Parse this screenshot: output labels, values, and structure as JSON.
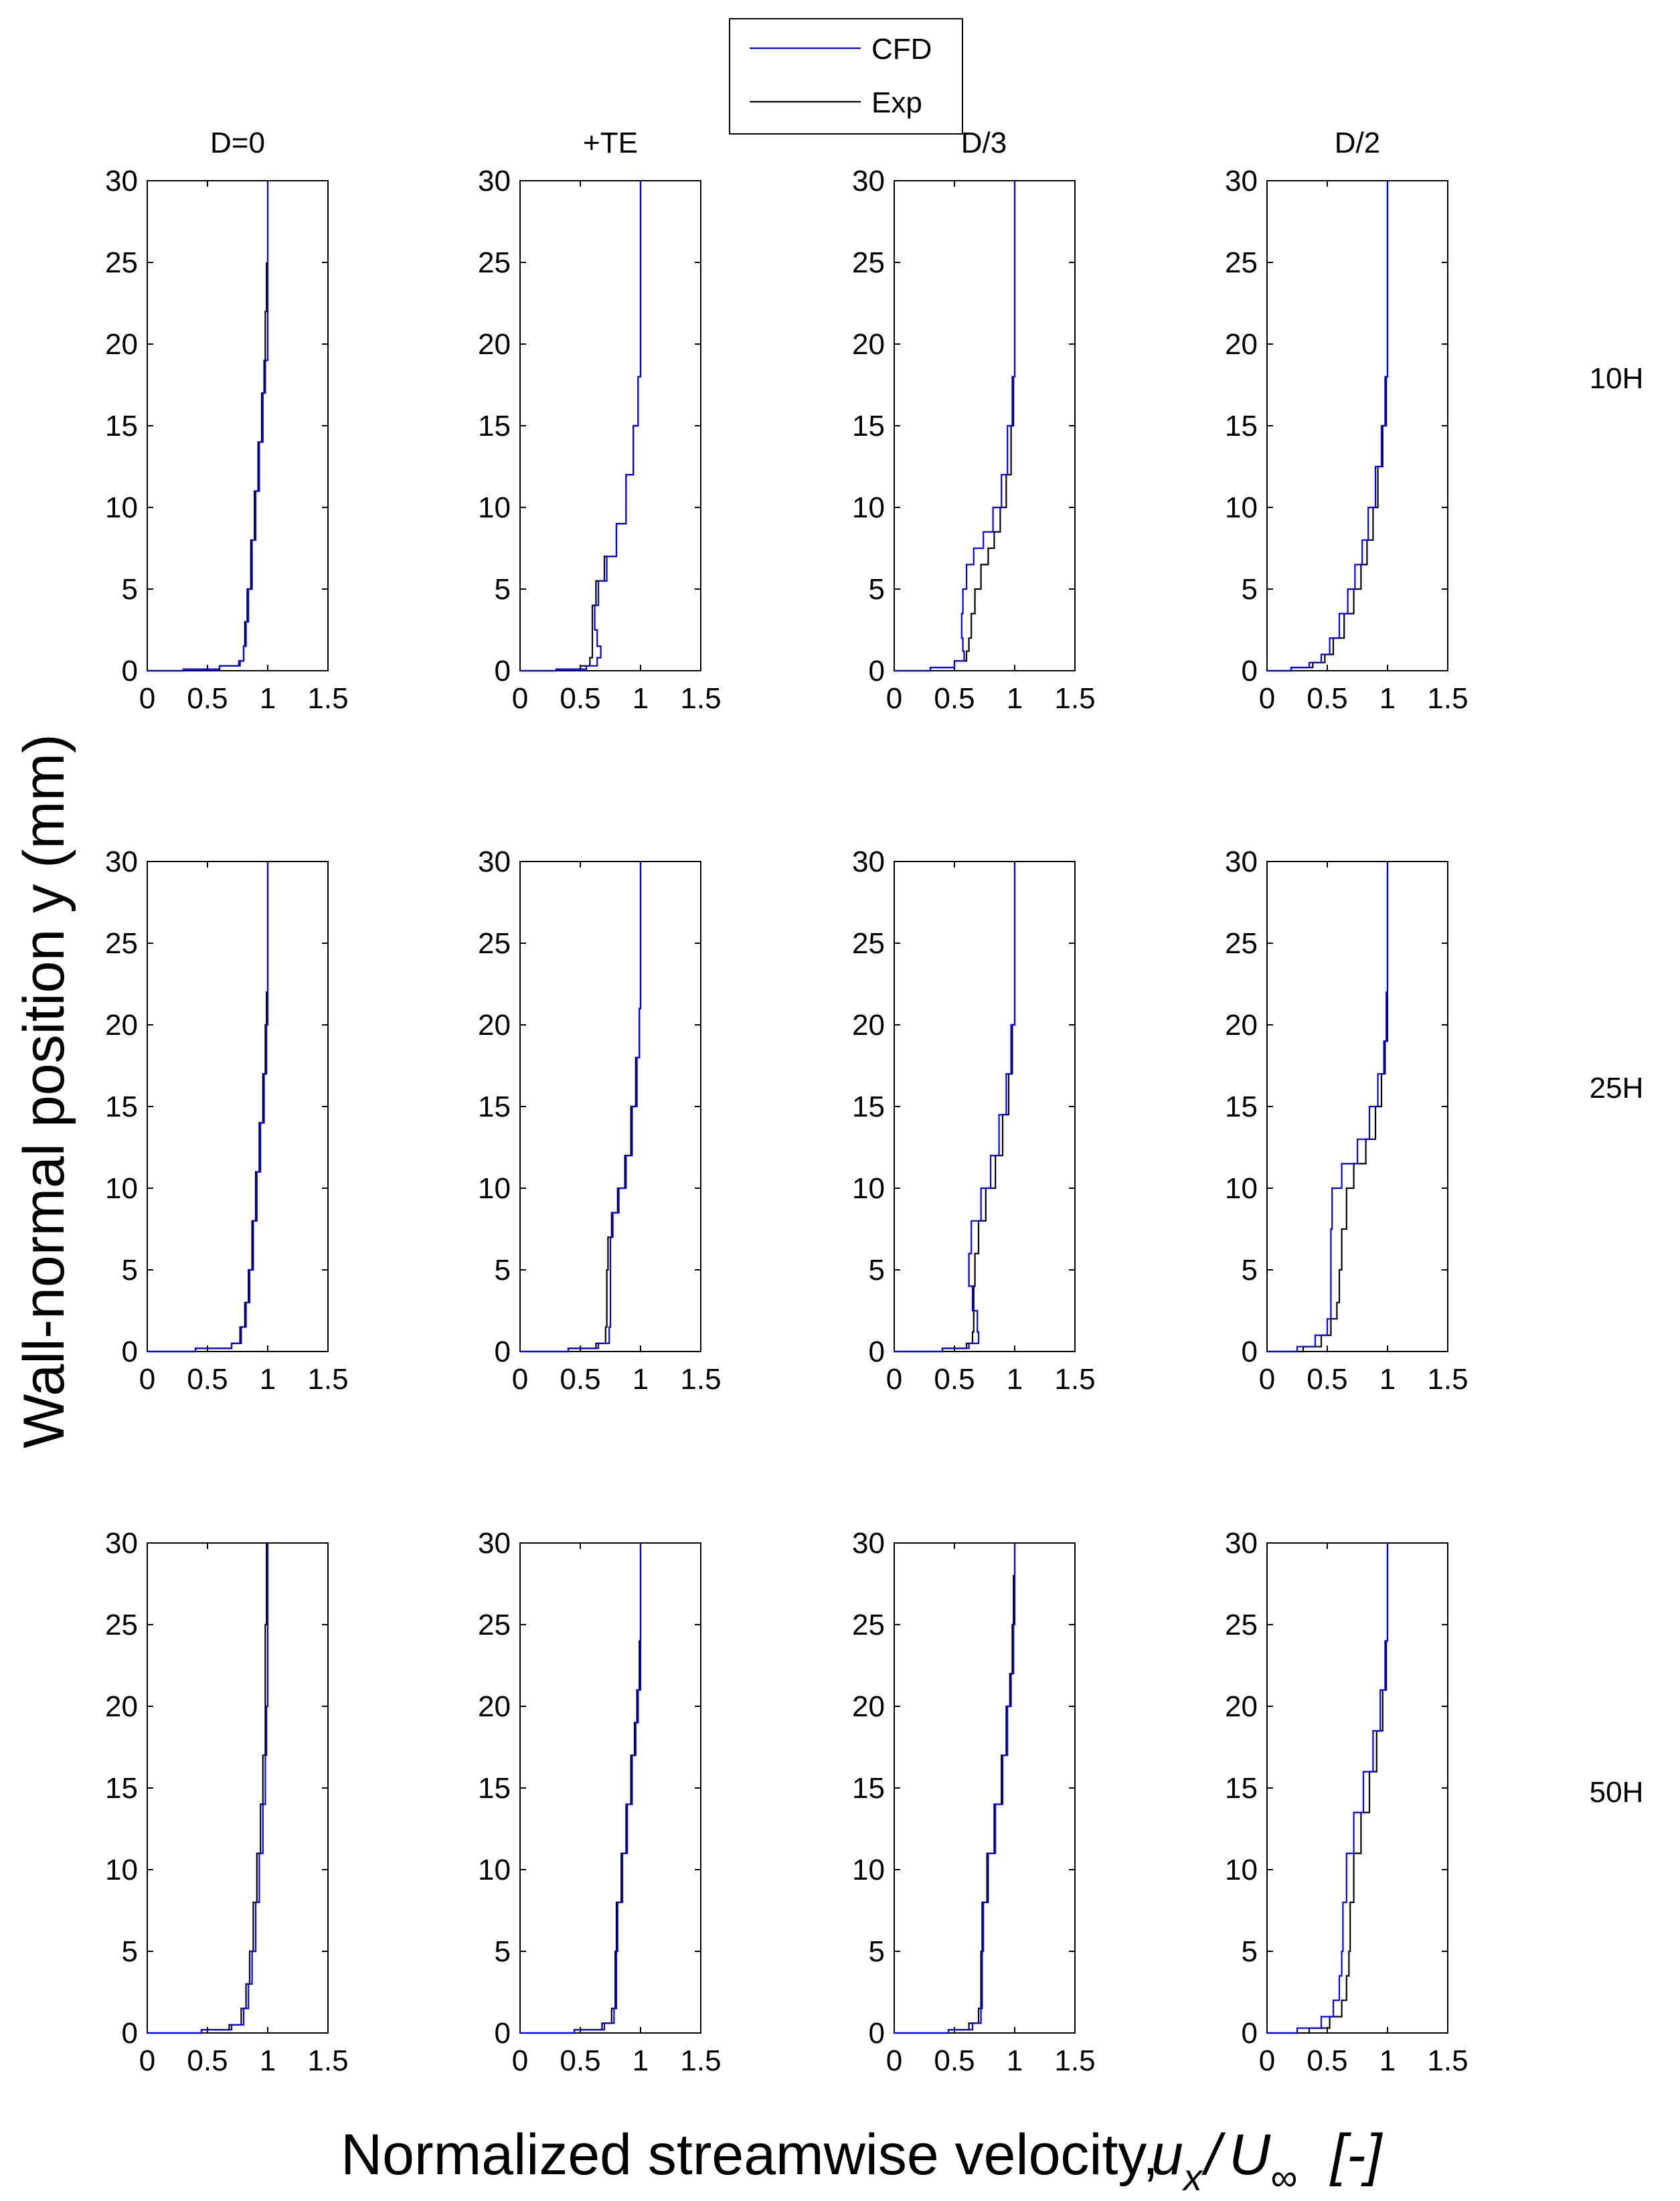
{
  "figure": {
    "xlabel": "Normalized streamwise velocity,",
    "xlabel_math": {
      "u": "u",
      "u_sub": "x",
      "slash": "/",
      "U": "U",
      "U_sub": "∞",
      "units": "[-]"
    },
    "ylabel": "Wall-normal position y (mm)"
  },
  "legend": {
    "placement": "top-center",
    "entries": [
      {
        "label": "CFD",
        "color": "#0000ff"
      },
      {
        "label": "Exp",
        "color": "#000000"
      }
    ]
  },
  "columns": [
    "D=0",
    "+TE",
    "D/3",
    "D/2"
  ],
  "rows": [
    "10H",
    "25H",
    "50H"
  ],
  "colors": {
    "cfd": "#0000ff",
    "exp": "#000000",
    "axes": "#000000"
  },
  "chart_data": {
    "type": "line",
    "layout": "3x4 small multiples",
    "xlim": [
      0,
      1.5
    ],
    "ylim": [
      0,
      30
    ],
    "xticks": [
      0,
      0.5,
      1,
      1.5
    ],
    "xtick_labels": [
      "0",
      "0.5",
      "1",
      "1.5"
    ],
    "yticks": [
      0,
      5,
      10,
      15,
      20,
      25,
      30
    ],
    "ytick_labels": [
      "0",
      "5",
      "10",
      "15",
      "20",
      "25",
      "30"
    ],
    "grid": false,
    "panels": [
      {
        "row": "10H",
        "col": "D=0",
        "series": [
          {
            "name": "CFD",
            "x": [
              0,
              0.3,
              0.6,
              0.76,
              0.8,
              0.82,
              0.84,
              0.87,
              0.9,
              0.93,
              0.96,
              0.98,
              1.0,
              1.0
            ],
            "y": [
              0,
              0.1,
              0.3,
              0.6,
              1.5,
              3,
              5,
              8,
              11,
              14,
              17,
              19,
              22,
              30
            ]
          },
          {
            "name": "Exp",
            "x": [
              0,
              0.3,
              0.6,
              0.77,
              0.8,
              0.81,
              0.83,
              0.86,
              0.89,
              0.92,
              0.95,
              0.97,
              0.98,
              0.99
            ],
            "y": [
              0,
              0.1,
              0.3,
              0.6,
              1.5,
              3,
              5,
              8,
              11,
              14,
              17,
              19,
              22,
              25
            ]
          }
        ]
      },
      {
        "row": "10H",
        "col": "+TE",
        "series": [
          {
            "name": "CFD",
            "x": [
              0,
              0.3,
              0.55,
              0.64,
              0.67,
              0.64,
              0.62,
              0.65,
              0.72,
              0.8,
              0.88,
              0.94,
              0.98,
              1.0,
              1.0
            ],
            "y": [
              0,
              0.1,
              0.3,
              0.8,
              1.5,
              2.5,
              4,
              5.5,
              7,
              9,
              12,
              15,
              18,
              22,
              30
            ]
          },
          {
            "name": "Exp",
            "x": [
              0,
              0.3,
              0.5,
              0.58,
              0.6,
              0.6,
              0.6,
              0.63,
              0.7,
              0.8,
              0.88,
              0.94,
              0.98,
              1.0,
              1.0
            ],
            "y": [
              0,
              0.1,
              0.3,
              0.8,
              1.5,
              2.5,
              4,
              5.5,
              7,
              9,
              12,
              15,
              18,
              22,
              30
            ]
          }
        ]
      },
      {
        "row": "10H",
        "col": "D/3",
        "series": [
          {
            "name": "CFD",
            "x": [
              0,
              0.3,
              0.5,
              0.58,
              0.57,
              0.56,
              0.57,
              0.6,
              0.66,
              0.74,
              0.82,
              0.89,
              0.94,
              0.98,
              1.0,
              1.0
            ],
            "y": [
              0,
              0.2,
              0.6,
              1.2,
              2,
              3.5,
              5,
              6.5,
              7.5,
              8.5,
              10,
              12,
              15,
              18,
              22,
              30
            ]
          },
          {
            "name": "Exp",
            "x": [
              0,
              0.3,
              0.5,
              0.6,
              0.62,
              0.64,
              0.67,
              0.72,
              0.78,
              0.83,
              0.88,
              0.93,
              0.97,
              0.99,
              1.0,
              1.0
            ],
            "y": [
              0,
              0.2,
              0.6,
              1.2,
              2,
              3.5,
              5,
              6.5,
              7.5,
              8.5,
              10,
              12,
              15,
              18,
              22,
              30
            ]
          }
        ]
      },
      {
        "row": "10H",
        "col": "D/2",
        "series": [
          {
            "name": "CFD",
            "x": [
              0,
              0.2,
              0.35,
              0.45,
              0.52,
              0.6,
              0.67,
              0.73,
              0.79,
              0.84,
              0.9,
              0.95,
              0.98,
              1.0,
              1.0
            ],
            "y": [
              0,
              0.2,
              0.5,
              1,
              2,
              3.5,
              5,
              6.5,
              8,
              10,
              12.5,
              15,
              18,
              22,
              30
            ]
          },
          {
            "name": "Exp",
            "x": [
              0,
              0.2,
              0.38,
              0.48,
              0.55,
              0.64,
              0.72,
              0.78,
              0.83,
              0.88,
              0.92,
              0.96,
              0.99,
              1.0,
              1.0
            ],
            "y": [
              0,
              0.2,
              0.5,
              1,
              2,
              3.5,
              5,
              6.5,
              8,
              10,
              12.5,
              15,
              18,
              21,
              30
            ]
          }
        ]
      },
      {
        "row": "25H",
        "col": "D=0",
        "series": [
          {
            "name": "CFD",
            "x": [
              0,
              0.4,
              0.7,
              0.78,
              0.82,
              0.85,
              0.88,
              0.91,
              0.94,
              0.97,
              0.99,
              1.0,
              1.0
            ],
            "y": [
              0,
              0.2,
              0.5,
              1.5,
              3,
              5,
              8,
              11,
              14,
              17,
              20,
              25,
              30
            ]
          },
          {
            "name": "Exp",
            "x": [
              0,
              0.4,
              0.7,
              0.77,
              0.81,
              0.84,
              0.87,
              0.9,
              0.93,
              0.96,
              0.98,
              0.99,
              1.0
            ],
            "y": [
              0,
              0.2,
              0.5,
              1.5,
              3,
              5,
              8,
              11,
              14,
              17,
              20,
              22,
              30
            ]
          }
        ]
      },
      {
        "row": "25H",
        "col": "+TE",
        "series": [
          {
            "name": "CFD",
            "x": [
              0,
              0.4,
              0.65,
              0.74,
              0.75,
              0.75,
              0.75,
              0.77,
              0.82,
              0.88,
              0.93,
              0.97,
              0.99,
              1.0,
              1.0
            ],
            "y": [
              0,
              0.2,
              0.5,
              1.5,
              3,
              5,
              7,
              8.5,
              10,
              12,
              15,
              18,
              21,
              25,
              30
            ]
          },
          {
            "name": "Exp",
            "x": [
              0,
              0.4,
              0.63,
              0.71,
              0.72,
              0.72,
              0.73,
              0.76,
              0.81,
              0.87,
              0.92,
              0.96,
              0.99,
              1.0,
              1.0
            ],
            "y": [
              0,
              0.2,
              0.5,
              1.5,
              3,
              5,
              7,
              8.5,
              10,
              12,
              15,
              18,
              21,
              25,
              30
            ]
          }
        ]
      },
      {
        "row": "25H",
        "col": "D/3",
        "series": [
          {
            "name": "CFD",
            "x": [
              0,
              0.4,
              0.62,
              0.7,
              0.69,
              0.65,
              0.62,
              0.64,
              0.72,
              0.8,
              0.87,
              0.93,
              0.97,
              1.0,
              1.0
            ],
            "y": [
              0,
              0.2,
              0.5,
              1.2,
              2.5,
              4,
              6,
              8,
              10,
              12,
              14.5,
              17,
              20,
              24,
              30
            ]
          },
          {
            "name": "Exp",
            "x": [
              0,
              0.4,
              0.6,
              0.65,
              0.66,
              0.66,
              0.67,
              0.7,
              0.76,
              0.84,
              0.9,
              0.95,
              0.98,
              1.0,
              1.0
            ],
            "y": [
              0,
              0.2,
              0.5,
              1.2,
              2.5,
              4,
              6,
              8,
              10,
              12,
              14.5,
              17,
              20,
              24,
              30
            ]
          }
        ]
      },
      {
        "row": "25H",
        "col": "D/2",
        "series": [
          {
            "name": "CFD",
            "x": [
              0,
              0.25,
              0.4,
              0.5,
              0.53,
              0.53,
              0.53,
              0.54,
              0.62,
              0.75,
              0.85,
              0.92,
              0.97,
              0.99,
              1.0,
              1.0
            ],
            "y": [
              0,
              0.3,
              1,
              2,
              3,
              5,
              7.5,
              10,
              11.5,
              13,
              15,
              17,
              19,
              22,
              26,
              30
            ]
          },
          {
            "name": "Exp",
            "x": [
              0,
              0.3,
              0.45,
              0.53,
              0.58,
              0.6,
              0.62,
              0.66,
              0.72,
              0.82,
              0.9,
              0.95,
              0.98,
              1.0,
              1.0,
              1.0
            ],
            "y": [
              0,
              0.3,
              1,
              2,
              3,
              5,
              7.5,
              10,
              11.5,
              13,
              15,
              17,
              19,
              22,
              26,
              30
            ]
          }
        ]
      },
      {
        "row": "50H",
        "col": "D=0",
        "series": [
          {
            "name": "CFD",
            "x": [
              0,
              0.45,
              0.7,
              0.8,
              0.84,
              0.87,
              0.9,
              0.93,
              0.96,
              0.98,
              0.99,
              1.0,
              1.0
            ],
            "y": [
              0,
              0.2,
              0.5,
              1.5,
              3,
              5,
              8,
              11,
              14,
              17,
              20,
              25,
              30
            ]
          },
          {
            "name": "Exp",
            "x": [
              0,
              0.45,
              0.68,
              0.78,
              0.82,
              0.85,
              0.88,
              0.91,
              0.94,
              0.96,
              0.98,
              0.98,
              0.99
            ],
            "y": [
              0,
              0.2,
              0.5,
              1.5,
              3,
              5,
              8,
              11,
              14,
              17,
              20,
              25,
              30
            ]
          }
        ]
      },
      {
        "row": "50H",
        "col": "+TE",
        "series": [
          {
            "name": "CFD",
            "x": [
              0,
              0.45,
              0.7,
              0.78,
              0.8,
              0.8,
              0.81,
              0.85,
              0.89,
              0.93,
              0.96,
              0.98,
              1.0,
              1.0
            ],
            "y": [
              0,
              0.2,
              0.6,
              1.5,
              3,
              5,
              8,
              11,
              14,
              17,
              19,
              21,
              24,
              30
            ]
          },
          {
            "name": "Exp",
            "x": [
              0,
              0.45,
              0.68,
              0.76,
              0.79,
              0.79,
              0.8,
              0.84,
              0.88,
              0.92,
              0.95,
              0.97,
              0.99,
              1.0
            ],
            "y": [
              0,
              0.2,
              0.6,
              1.5,
              3,
              5,
              8,
              11,
              14,
              17,
              19,
              21,
              24,
              30
            ]
          }
        ]
      },
      {
        "row": "50H",
        "col": "D/3",
        "series": [
          {
            "name": "CFD",
            "x": [
              0,
              0.45,
              0.65,
              0.72,
              0.73,
              0.73,
              0.74,
              0.78,
              0.84,
              0.9,
              0.94,
              0.97,
              0.99,
              1.0,
              1.0
            ],
            "y": [
              0,
              0.2,
              0.6,
              1.5,
              3,
              5,
              8,
              11,
              14,
              17,
              20,
              22,
              25,
              28,
              30
            ]
          },
          {
            "name": "Exp",
            "x": [
              0,
              0.45,
              0.62,
              0.7,
              0.72,
              0.72,
              0.73,
              0.77,
              0.83,
              0.89,
              0.93,
              0.96,
              0.98,
              0.99,
              1.0
            ],
            "y": [
              0,
              0.2,
              0.6,
              1.5,
              3,
              5,
              8,
              11,
              14,
              17,
              20,
              22,
              25,
              28,
              30
            ]
          }
        ]
      },
      {
        "row": "50H",
        "col": "D/2",
        "series": [
          {
            "name": "CFD",
            "x": [
              0,
              0.25,
              0.45,
              0.55,
              0.6,
              0.62,
              0.63,
              0.66,
              0.72,
              0.8,
              0.88,
              0.94,
              0.98,
              1.0,
              1.0
            ],
            "y": [
              0,
              0.3,
              1,
              2,
              3.5,
              5,
              8,
              11,
              13.5,
              16,
              18.5,
              21,
              24,
              27,
              30
            ]
          },
          {
            "name": "Exp",
            "x": [
              0,
              0.35,
              0.52,
              0.62,
              0.66,
              0.68,
              0.69,
              0.72,
              0.78,
              0.85,
              0.91,
              0.96,
              0.99,
              1.0,
              1.0
            ],
            "y": [
              0,
              0.3,
              1,
              2,
              3.5,
              5,
              8,
              11,
              13.5,
              16,
              18.5,
              21,
              24,
              27,
              30
            ]
          }
        ]
      }
    ]
  }
}
